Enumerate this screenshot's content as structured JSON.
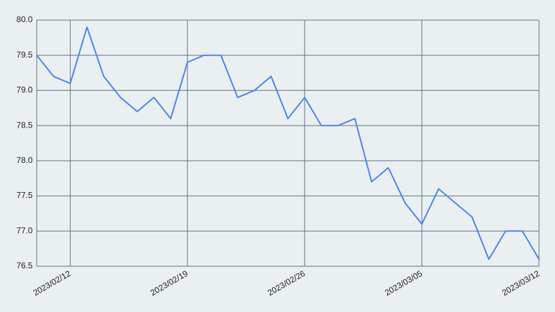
{
  "chart_data": {
    "type": "line",
    "x": [
      "2023/02/10",
      "2023/02/11",
      "2023/02/12",
      "2023/02/13",
      "2023/02/14",
      "2023/02/15",
      "2023/02/16",
      "2023/02/17",
      "2023/02/18",
      "2023/02/19",
      "2023/02/20",
      "2023/02/21",
      "2023/02/22",
      "2023/02/23",
      "2023/02/24",
      "2023/02/25",
      "2023/02/26",
      "2023/02/27",
      "2023/02/28",
      "2023/03/01",
      "2023/03/02",
      "2023/03/03",
      "2023/03/04",
      "2023/03/05",
      "2023/03/06",
      "2023/03/07",
      "2023/03/08",
      "2023/03/09",
      "2023/03/10",
      "2023/03/11",
      "2023/03/12"
    ],
    "values": [
      79.5,
      79.2,
      79.1,
      79.9,
      79.2,
      78.9,
      78.7,
      78.9,
      78.6,
      79.4,
      79.5,
      79.5,
      78.9,
      79.0,
      79.2,
      78.6,
      78.9,
      78.5,
      78.5,
      78.6,
      77.7,
      77.9,
      77.4,
      77.1,
      77.6,
      77.4,
      77.2,
      76.6,
      77.0,
      77.0,
      76.6
    ],
    "color": "#4a86e8",
    "xlim": [
      "2023/02/10",
      "2023/03/12"
    ],
    "xticks": [
      "2023/02/12",
      "2023/02/19",
      "2023/02/26",
      "2023/03/05",
      "2023/03/12"
    ],
    "ylim": [
      76.5,
      80.0
    ],
    "yticks": [
      76.5,
      {
        "value": 77.0,
        "label": "77.0"
      },
      77.5,
      {
        "value": 78.0,
        "label": "78.0"
      },
      78.5,
      {
        "value": 79.0,
        "label": "79.0"
      },
      79.5,
      {
        "value": 80.0,
        "label": "80.0"
      }
    ],
    "grid": true
  }
}
